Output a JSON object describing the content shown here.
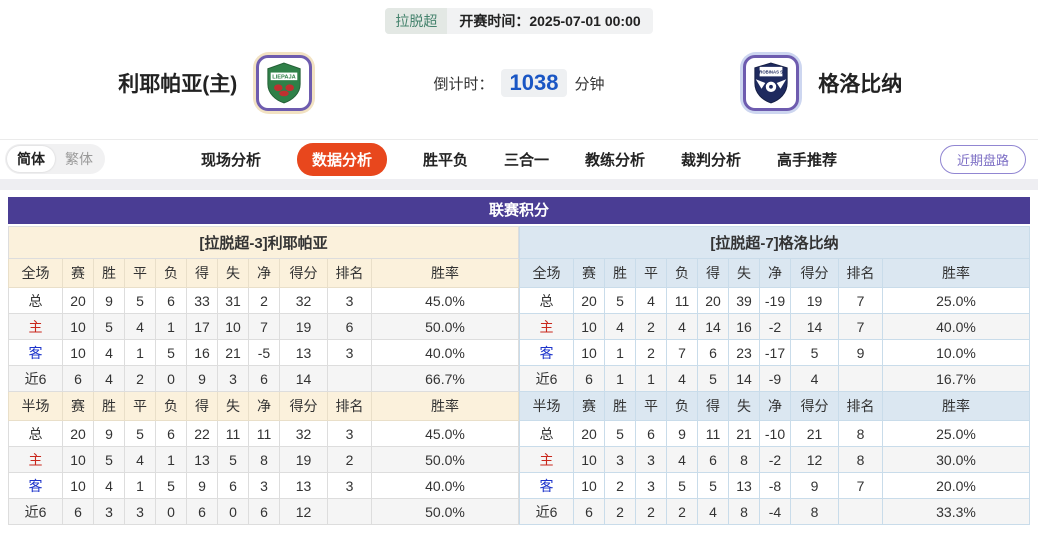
{
  "header": {
    "league_badge": "拉脱超",
    "kickoff_label": "开赛时间：",
    "kickoff_time": "2025-07-01 00:00",
    "home_team": "利耶帕亚(主)",
    "away_team": "格洛比纳",
    "countdown_label": "倒计时：",
    "countdown_value": "1038",
    "countdown_unit": "分钟"
  },
  "nav": {
    "lang_simplified": "简体",
    "lang_traditional": "繁体",
    "tabs": [
      {
        "label": "现场分析",
        "active": false
      },
      {
        "label": "数据分析",
        "active": true
      },
      {
        "label": "胜平负",
        "active": false
      },
      {
        "label": "三合一",
        "active": false
      },
      {
        "label": "教练分析",
        "active": false
      },
      {
        "label": "裁判分析",
        "active": false
      },
      {
        "label": "高手推荐",
        "active": false
      }
    ],
    "recent_button": "近期盘路"
  },
  "table": {
    "title": "联赛积分",
    "columns_full": [
      "全场",
      "赛",
      "胜",
      "平",
      "负",
      "得",
      "失",
      "净",
      "得分",
      "排名",
      "胜率"
    ],
    "columns_half": [
      "半场",
      "赛",
      "胜",
      "平",
      "负",
      "得",
      "失",
      "净",
      "得分",
      "排名",
      "胜率"
    ],
    "left": {
      "team_header": "[拉脱超-3]利耶帕亚",
      "full": [
        {
          "label": "总",
          "values": [
            "20",
            "9",
            "5",
            "6",
            "33",
            "31",
            "2",
            "32",
            "3",
            "45.0%"
          ]
        },
        {
          "label": "主",
          "values": [
            "10",
            "5",
            "4",
            "1",
            "17",
            "10",
            "7",
            "19",
            "6",
            "50.0%"
          ]
        },
        {
          "label": "客",
          "values": [
            "10",
            "4",
            "1",
            "5",
            "16",
            "21",
            "-5",
            "13",
            "3",
            "40.0%"
          ]
        },
        {
          "label": "近6",
          "values": [
            "6",
            "4",
            "2",
            "0",
            "9",
            "3",
            "6",
            "14",
            "",
            "66.7%"
          ]
        }
      ],
      "half": [
        {
          "label": "总",
          "values": [
            "20",
            "9",
            "5",
            "6",
            "22",
            "11",
            "11",
            "32",
            "3",
            "45.0%"
          ]
        },
        {
          "label": "主",
          "values": [
            "10",
            "5",
            "4",
            "1",
            "13",
            "5",
            "8",
            "19",
            "2",
            "50.0%"
          ]
        },
        {
          "label": "客",
          "values": [
            "10",
            "4",
            "1",
            "5",
            "9",
            "6",
            "3",
            "13",
            "3",
            "40.0%"
          ]
        },
        {
          "label": "近6",
          "values": [
            "6",
            "3",
            "3",
            "0",
            "6",
            "0",
            "6",
            "12",
            "",
            "50.0%"
          ]
        }
      ]
    },
    "right": {
      "team_header": "[拉脱超-7]格洛比纳",
      "full": [
        {
          "label": "总",
          "values": [
            "20",
            "5",
            "4",
            "11",
            "20",
            "39",
            "-19",
            "19",
            "7",
            "25.0%"
          ]
        },
        {
          "label": "主",
          "values": [
            "10",
            "4",
            "2",
            "4",
            "14",
            "16",
            "-2",
            "14",
            "7",
            "40.0%"
          ]
        },
        {
          "label": "客",
          "values": [
            "10",
            "1",
            "2",
            "7",
            "6",
            "23",
            "-17",
            "5",
            "9",
            "10.0%"
          ]
        },
        {
          "label": "近6",
          "values": [
            "6",
            "1",
            "1",
            "4",
            "5",
            "14",
            "-9",
            "4",
            "",
            "16.7%"
          ]
        }
      ],
      "half": [
        {
          "label": "总",
          "values": [
            "20",
            "5",
            "6",
            "9",
            "11",
            "21",
            "-10",
            "21",
            "8",
            "25.0%"
          ]
        },
        {
          "label": "主",
          "values": [
            "10",
            "3",
            "3",
            "4",
            "6",
            "8",
            "-2",
            "12",
            "8",
            "30.0%"
          ]
        },
        {
          "label": "客",
          "values": [
            "10",
            "2",
            "3",
            "5",
            "5",
            "13",
            "-8",
            "9",
            "7",
            "20.0%"
          ]
        },
        {
          "label": "近6",
          "values": [
            "6",
            "2",
            "2",
            "2",
            "4",
            "8",
            "-4",
            "8",
            "",
            "33.3%"
          ]
        }
      ]
    }
  },
  "colors": {
    "accent_purple": "#4a3d94",
    "left_header_cream": "#fbf1dc",
    "right_header_blue": "#dbe7f1",
    "active_tab_red": "#e8471d",
    "home_label_red": "#c9281d",
    "away_label_blue": "#1d34cb",
    "countdown_blue": "#1a56c4",
    "league_badge_green": "#45836d",
    "recent_button_purple": "#7d6fc5"
  }
}
